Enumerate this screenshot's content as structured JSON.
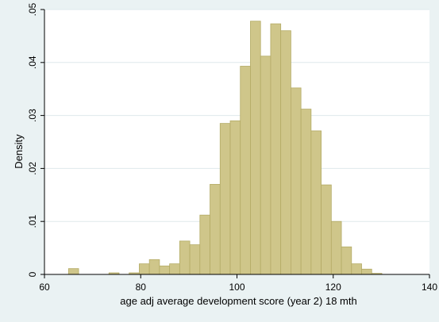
{
  "chart_data": {
    "type": "bar",
    "subtype": "histogram",
    "title": "",
    "xlabel": "age adj average development score (year 2) 18 mth",
    "ylabel": "Density",
    "xlim": [
      60,
      140
    ],
    "ylim": [
      0,
      0.05
    ],
    "x_ticks": [
      60,
      80,
      100,
      120,
      140
    ],
    "x_tick_labels": [
      "60",
      "80",
      "100",
      "120",
      "140"
    ],
    "y_ticks": [
      0,
      0.01,
      0.02,
      0.03,
      0.04,
      0.05
    ],
    "y_tick_labels": [
      "0",
      ".01",
      ".02",
      ".03",
      ".04",
      ".05"
    ],
    "grid": "horizontal",
    "legend": "none",
    "bin_width": 2.1,
    "bin_starts": [
      65.0,
      73.4,
      77.6,
      79.7,
      81.8,
      83.9,
      86.0,
      88.1,
      90.2,
      92.3,
      94.4,
      96.5,
      98.6,
      100.7,
      102.8,
      104.9,
      107.0,
      109.1,
      111.2,
      113.3,
      115.4,
      117.5,
      119.6,
      121.7,
      123.8,
      125.9,
      128.0
    ],
    "values": [
      0.0011,
      0.0003,
      0.0003,
      0.002,
      0.0028,
      0.0016,
      0.002,
      0.0063,
      0.0056,
      0.0112,
      0.017,
      0.0285,
      0.029,
      0.0393,
      0.0478,
      0.0412,
      0.0473,
      0.046,
      0.0352,
      0.0312,
      0.0271,
      0.0169,
      0.01,
      0.0052,
      0.002,
      0.001,
      0.0002
    ],
    "colors": {
      "bar_fill": "#cfc68a",
      "bar_stroke": "#b4ab66",
      "plot_background": "#ffffff",
      "page_background": "#eaf2f3",
      "grid": "#dfe9ec",
      "axis": "#000000"
    }
  }
}
